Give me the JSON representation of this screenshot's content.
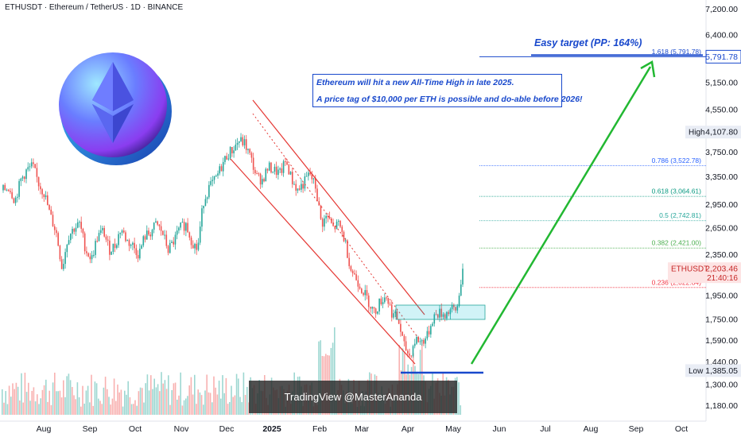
{
  "header": {
    "title": "ETHUSDT · Ethereum / TetherUS · 1D · BINANCE"
  },
  "annotations": {
    "line1": "Ethereum will hit a new All-Time High in late 2025.",
    "line2": "A price tag of $10,000 per ETH is possible and do-able before 2026!",
    "target": "Easy target (PP: 164%)"
  },
  "watermark": "TradingView @MasterAnanda",
  "colors": {
    "up": "#26a69a",
    "down": "#ef5350",
    "accent": "#1848cc",
    "arrow": "#22b832",
    "channel": "#e53935"
  },
  "icons": [
    "ethereum-coin-icon"
  ],
  "chart_data": {
    "type": "candlestick",
    "y_scale": "log",
    "ylim": [
      1100,
      7500
    ],
    "y_ticks": [
      {
        "v": 7200,
        "label": "7,200.00"
      },
      {
        "v": 6400,
        "label": "6,400.00"
      },
      {
        "v": 5800,
        "label": "5,800.00"
      },
      {
        "v": 5150,
        "label": "5,150.00"
      },
      {
        "v": 4550,
        "label": "4,550.00"
      },
      {
        "v": 3750,
        "label": "3,750.00"
      },
      {
        "v": 3350,
        "label": "3,350.00"
      },
      {
        "v": 2950,
        "label": "2,950.00"
      },
      {
        "v": 2650,
        "label": "2,650.00"
      },
      {
        "v": 2350,
        "label": "2,350.00"
      },
      {
        "v": 1950,
        "label": "1,950.00"
      },
      {
        "v": 1750,
        "label": "1,750.00"
      },
      {
        "v": 1590,
        "label": "1,590.00"
      },
      {
        "v": 1440,
        "label": "1,440.00"
      },
      {
        "v": 1300,
        "label": "1,300.00"
      },
      {
        "v": 1180,
        "label": "1,180.00"
      }
    ],
    "x_ticks": [
      "Aug",
      "Sep",
      "Oct",
      "Nov",
      "Dec",
      "2025",
      "Feb",
      "Mar",
      "Apr",
      "May",
      "Jun",
      "Jul",
      "Aug",
      "Sep",
      "Oct"
    ],
    "fib_levels": [
      {
        "label": "1.618 (5,791.78)",
        "value": 5791.78,
        "color": "#1848cc"
      },
      {
        "label": "0.786 (3,522.78)",
        "value": 3522.78,
        "color": "#2962ff"
      },
      {
        "label": "0.618 (3,064.61)",
        "value": 3064.61,
        "color": "#089981"
      },
      {
        "label": "0.5 (2,742.81)",
        "value": 2742.81,
        "color": "#26a69a"
      },
      {
        "label": "0.382 (2,421.00)",
        "value": 2421.0,
        "color": "#4caf50"
      },
      {
        "label": "0.236 (2,022.84)",
        "value": 2022.84,
        "color": "#f23645"
      }
    ],
    "price_badges": [
      {
        "name": "",
        "value": "5,791.78",
        "v": 5791.78,
        "style": "outline"
      },
      {
        "name": "High",
        "value": "4,107.80",
        "v": 4107.8,
        "style": "grey"
      },
      {
        "name": "ETHUSDT",
        "value": "2,203.46",
        "v": 2203.46,
        "style": "red",
        "sub": "21:40:16"
      },
      {
        "name": "Low",
        "value": "1,385.05",
        "v": 1385.05,
        "style": "grey"
      }
    ],
    "price_path": [
      [
        0,
        3150
      ],
      [
        1,
        3200
      ],
      [
        2,
        3000
      ],
      [
        3,
        3300
      ],
      [
        4,
        3450
      ],
      [
        5,
        3520
      ],
      [
        6,
        3250
      ],
      [
        7,
        3100
      ],
      [
        8,
        2800
      ],
      [
        9,
        2600
      ],
      [
        10,
        2200
      ],
      [
        11,
        2550
      ],
      [
        12,
        2650
      ],
      [
        13,
        2700
      ],
      [
        14,
        2400
      ],
      [
        15,
        2300
      ],
      [
        16,
        2550
      ],
      [
        17,
        2620
      ],
      [
        18,
        2400
      ],
      [
        19,
        2450
      ],
      [
        20,
        2650
      ],
      [
        21,
        2500
      ],
      [
        22,
        2450
      ],
      [
        23,
        2350
      ],
      [
        24,
        2550
      ],
      [
        25,
        2600
      ],
      [
        26,
        2700
      ],
      [
        27,
        2600
      ],
      [
        28,
        2400
      ],
      [
        29,
        2500
      ],
      [
        30,
        2650
      ],
      [
        31,
        2700
      ],
      [
        32,
        2500
      ],
      [
        33,
        2400
      ],
      [
        34,
        3000
      ],
      [
        35,
        3200
      ],
      [
        36,
        3300
      ],
      [
        37,
        3500
      ],
      [
        38,
        3700
      ],
      [
        39,
        3800
      ],
      [
        40,
        3950
      ],
      [
        41,
        3900
      ],
      [
        42,
        3650
      ],
      [
        43,
        3350
      ],
      [
        44,
        3300
      ],
      [
        45,
        3500
      ],
      [
        46,
        3450
      ],
      [
        47,
        3400
      ],
      [
        48,
        3600
      ],
      [
        49,
        3300
      ],
      [
        50,
        3150
      ],
      [
        51,
        3250
      ],
      [
        52,
        3400
      ],
      [
        53,
        3200
      ],
      [
        54,
        2700
      ],
      [
        55,
        2800
      ],
      [
        56,
        2650
      ],
      [
        57,
        2700
      ],
      [
        58,
        2500
      ],
      [
        59,
        2200
      ],
      [
        60,
        2100
      ],
      [
        61,
        2000
      ],
      [
        62,
        1900
      ],
      [
        63,
        1800
      ],
      [
        64,
        1900
      ],
      [
        65,
        1950
      ],
      [
        66,
        1800
      ],
      [
        67,
        1750
      ],
      [
        68,
        1550
      ],
      [
        69,
        1480
      ],
      [
        70,
        1600
      ],
      [
        71,
        1580
      ],
      [
        72,
        1620
      ],
      [
        73,
        1770
      ],
      [
        74,
        1800
      ],
      [
        75,
        1790
      ],
      [
        76,
        1830
      ],
      [
        77,
        1820
      ],
      [
        78,
        2203
      ]
    ]
  }
}
